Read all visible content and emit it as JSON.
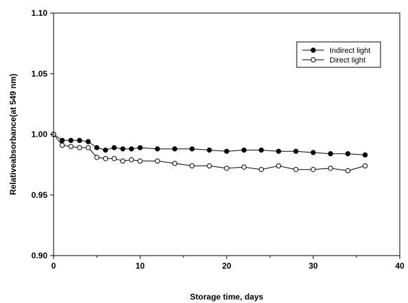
{
  "chart_data": {
    "type": "line",
    "title": "",
    "xlabel": "Storage time, days",
    "ylabel": "Relativeabsorbance(at 549 nm)",
    "xlim": [
      0,
      40
    ],
    "ylim": [
      0.9,
      1.1
    ],
    "x_ticks": [
      "0",
      "10",
      "20",
      "30",
      "40"
    ],
    "y_ticks": [
      "0.90",
      "0.95",
      "1.00",
      "1.05",
      "1.10"
    ],
    "grid": false,
    "legend_position": "top-right",
    "series": [
      {
        "name": "Indirect light",
        "marker": "filled-circle",
        "color": "#000000",
        "x": [
          0,
          1,
          2,
          3,
          4,
          5,
          6,
          7,
          8,
          9,
          10,
          12,
          14,
          16,
          18,
          20,
          22,
          24,
          26,
          28,
          30,
          32,
          34,
          36
        ],
        "y": [
          1.0,
          0.995,
          0.995,
          0.995,
          0.994,
          0.989,
          0.987,
          0.989,
          0.988,
          0.988,
          0.989,
          0.988,
          0.988,
          0.988,
          0.987,
          0.986,
          0.987,
          0.987,
          0.986,
          0.986,
          0.985,
          0.984,
          0.984,
          0.983
        ]
      },
      {
        "name": "Direct light",
        "marker": "open-circle",
        "color": "#000000",
        "x": [
          0,
          1,
          2,
          3,
          4,
          5,
          6,
          7,
          8,
          9,
          10,
          12,
          14,
          16,
          18,
          20,
          22,
          24,
          26,
          28,
          30,
          32,
          34,
          36
        ],
        "y": [
          1.0,
          0.991,
          0.99,
          0.989,
          0.989,
          0.981,
          0.98,
          0.98,
          0.978,
          0.979,
          0.978,
          0.978,
          0.976,
          0.974,
          0.974,
          0.972,
          0.973,
          0.971,
          0.974,
          0.971,
          0.971,
          0.972,
          0.97,
          0.974
        ]
      }
    ]
  }
}
